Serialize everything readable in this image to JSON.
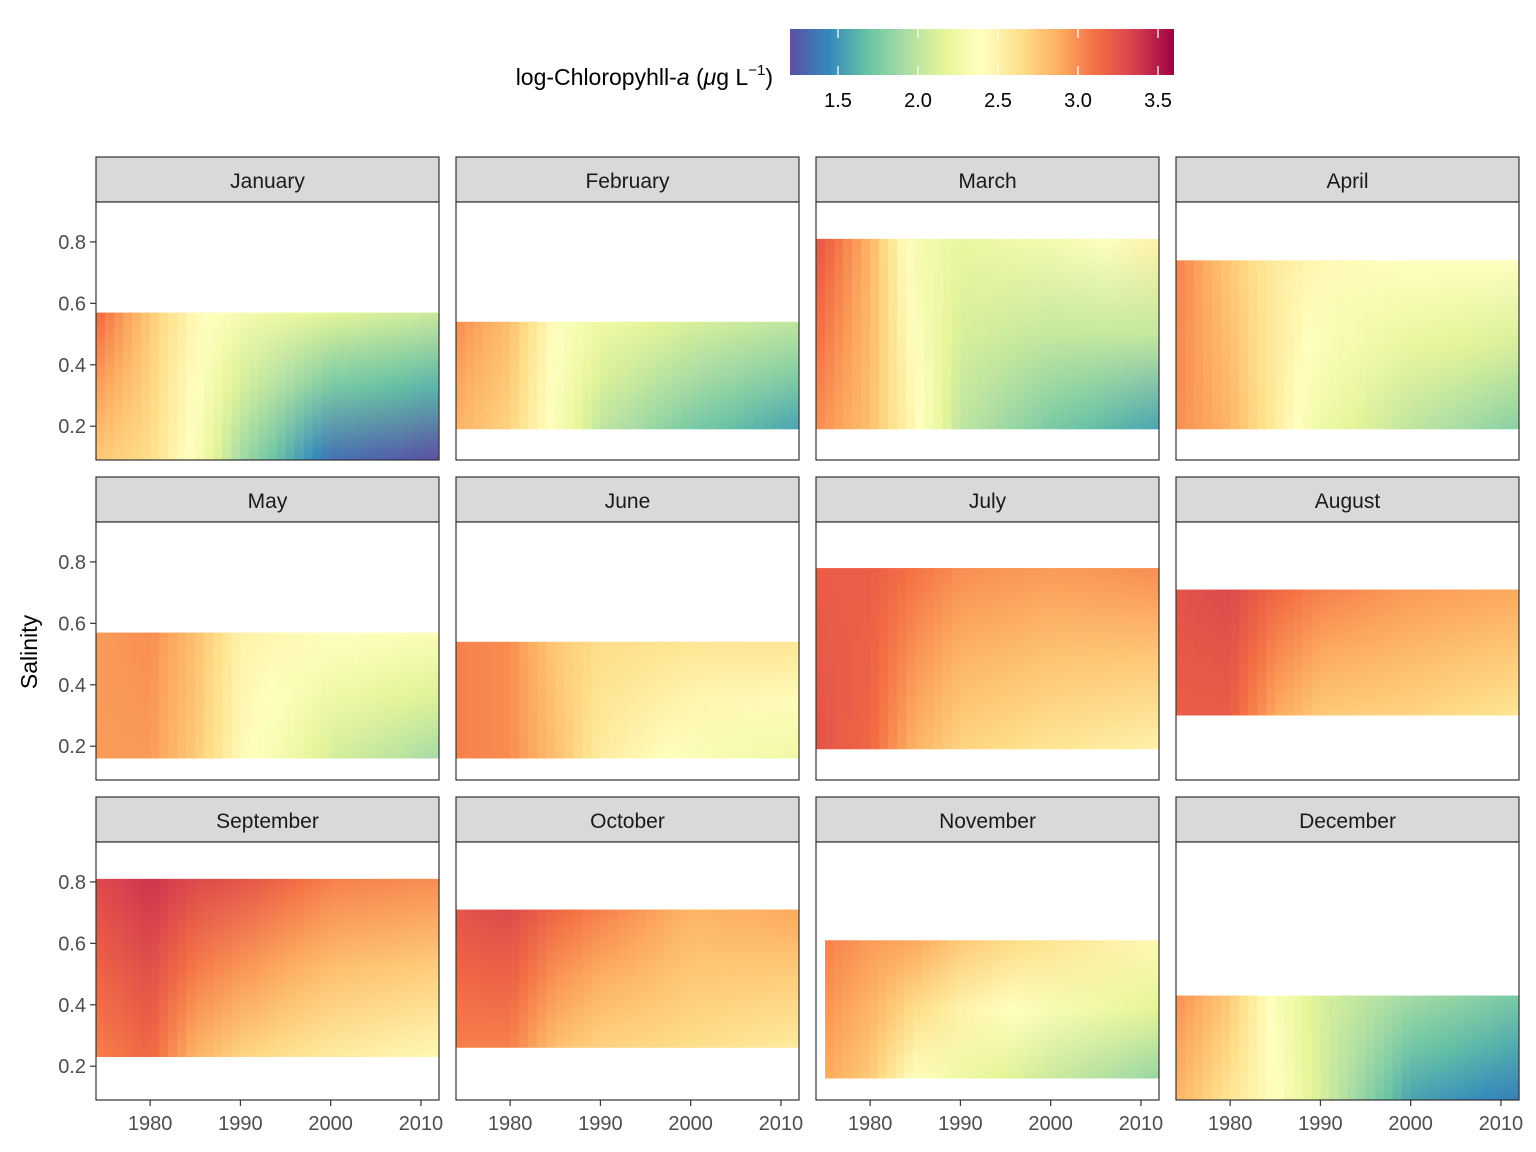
{
  "chart_data": {
    "type": "heatmap",
    "facet_by": "month",
    "xlabel": "",
    "ylabel": "Salinity",
    "xlim": [
      1974,
      2012
    ],
    "ylim": [
      0.09,
      0.93
    ],
    "x_ticks": [
      1980,
      1990,
      2000,
      2010
    ],
    "y_ticks": [
      0.2,
      0.4,
      0.6,
      0.8
    ],
    "y_tick_labels": [
      "0.2",
      "0.4",
      "0.6",
      "0.8"
    ],
    "legend": {
      "title_main": "log-Chloropyhll-",
      "title_italic": "a",
      "title_unit_prefix": " (",
      "title_unit_mu": "μ",
      "title_unit_g": "g L",
      "title_exponent": "−1",
      "title_close": ")",
      "placement": "top",
      "range": [
        1.2,
        3.6
      ],
      "ticks": [
        1.5,
        2.0,
        2.5,
        3.0,
        3.5
      ],
      "tick_labels": [
        "1.5",
        "2.0",
        "2.5",
        "3.0",
        "3.5"
      ],
      "palette": [
        "#5e4fa2",
        "#3288bd",
        "#66c2a5",
        "#abdda4",
        "#e6f598",
        "#ffffbf",
        "#fee08b",
        "#fdae61",
        "#f46d43",
        "#d53e4f",
        "#9e0142"
      ]
    },
    "panels": [
      {
        "month": "January",
        "x_range": [
          1974,
          2012
        ],
        "salinity_range": [
          0.09,
          0.57
        ],
        "years": [
          1974,
          1980,
          1985,
          1990,
          2000,
          2012
        ],
        "top": [
          3.15,
          2.75,
          2.45,
          2.3,
          2.15,
          2.05
        ],
        "bottom": [
          2.75,
          2.65,
          2.35,
          1.9,
          1.35,
          1.2
        ]
      },
      {
        "month": "February",
        "x_range": [
          1974,
          2012
        ],
        "salinity_range": [
          0.19,
          0.54
        ],
        "years": [
          1974,
          1980,
          1985,
          1990,
          2000,
          2012
        ],
        "top": [
          3.0,
          2.8,
          2.4,
          2.25,
          2.1,
          2.0
        ],
        "bottom": [
          2.85,
          2.7,
          2.35,
          2.0,
          1.75,
          1.55
        ]
      },
      {
        "month": "March",
        "x_range": [
          1974,
          2012
        ],
        "salinity_range": [
          0.19,
          0.81
        ],
        "years": [
          1974,
          1980,
          1985,
          1990,
          2000,
          2012
        ],
        "top": [
          3.25,
          2.85,
          2.3,
          2.2,
          2.3,
          2.5
        ],
        "bottom": [
          3.0,
          2.8,
          2.45,
          2.0,
          1.75,
          1.55
        ]
      },
      {
        "month": "April",
        "x_range": [
          1974,
          2012
        ],
        "salinity_range": [
          0.19,
          0.74
        ],
        "years": [
          1974,
          1980,
          1985,
          1990,
          2000,
          2012
        ],
        "top": [
          3.05,
          2.75,
          2.55,
          2.45,
          2.4,
          2.4
        ],
        "bottom": [
          3.0,
          2.85,
          2.55,
          2.25,
          2.0,
          1.8
        ]
      },
      {
        "month": "May",
        "x_range": [
          1974,
          2012
        ],
        "salinity_range": [
          0.16,
          0.57
        ],
        "years": [
          1974,
          1980,
          1985,
          1990,
          2000,
          2012
        ],
        "top": [
          2.95,
          3.0,
          2.8,
          2.5,
          2.4,
          2.35
        ],
        "bottom": [
          2.95,
          2.95,
          2.75,
          2.45,
          2.1,
          1.9
        ]
      },
      {
        "month": "June",
        "x_range": [
          1974,
          2012
        ],
        "salinity_range": [
          0.16,
          0.54
        ],
        "years": [
          1974,
          1980,
          1985,
          1990,
          2000,
          2012
        ],
        "top": [
          3.05,
          3.0,
          2.75,
          2.65,
          2.6,
          2.6
        ],
        "bottom": [
          3.05,
          3.0,
          2.8,
          2.55,
          2.35,
          2.25
        ]
      },
      {
        "month": "July",
        "x_range": [
          1974,
          2012
        ],
        "salinity_range": [
          0.19,
          0.78
        ],
        "years": [
          1974,
          1980,
          1985,
          1990,
          2000,
          2012
        ],
        "top": [
          3.2,
          3.2,
          3.1,
          3.0,
          2.95,
          3.0
        ],
        "bottom": [
          3.25,
          3.15,
          2.85,
          2.7,
          2.6,
          2.5
        ]
      },
      {
        "month": "August",
        "x_range": [
          1974,
          2012
        ],
        "salinity_range": [
          0.3,
          0.71
        ],
        "years": [
          1974,
          1980,
          1985,
          1990,
          2000,
          2012
        ],
        "top": [
          3.25,
          3.3,
          3.15,
          3.05,
          2.95,
          2.9
        ],
        "bottom": [
          3.2,
          3.2,
          2.9,
          2.75,
          2.7,
          2.6
        ]
      },
      {
        "month": "September",
        "x_range": [
          1974,
          2012
        ],
        "salinity_range": [
          0.23,
          0.81
        ],
        "years": [
          1974,
          1980,
          1985,
          1990,
          2000,
          2012
        ],
        "top": [
          3.3,
          3.4,
          3.3,
          3.25,
          3.05,
          3.0
        ],
        "bottom": [
          3.05,
          3.15,
          2.85,
          2.7,
          2.55,
          2.45
        ]
      },
      {
        "month": "October",
        "x_range": [
          1974,
          2012
        ],
        "salinity_range": [
          0.26,
          0.71
        ],
        "years": [
          1974,
          1980,
          1985,
          1990,
          2000,
          2012
        ],
        "top": [
          3.25,
          3.3,
          3.15,
          3.05,
          2.85,
          2.9
        ],
        "bottom": [
          3.05,
          3.05,
          2.8,
          2.7,
          2.65,
          2.55
        ]
      },
      {
        "month": "November",
        "x_range": [
          1975,
          2012
        ],
        "salinity_range": [
          0.16,
          0.61
        ],
        "years": [
          1975,
          1980,
          1985,
          1990,
          2000,
          2012
        ],
        "top": [
          3.05,
          2.95,
          2.9,
          2.75,
          2.6,
          2.45
        ],
        "bottom": [
          2.9,
          2.75,
          2.4,
          2.25,
          2.05,
          1.85
        ]
      },
      {
        "month": "December",
        "x_range": [
          1974,
          2012
        ],
        "salinity_range": [
          0.09,
          0.43
        ],
        "years": [
          1974,
          1980,
          1985,
          1990,
          2000,
          2012
        ],
        "top": [
          3.0,
          2.75,
          2.35,
          2.1,
          1.9,
          1.75
        ],
        "bottom": [
          2.85,
          2.6,
          2.4,
          2.1,
          1.55,
          1.4
        ]
      }
    ]
  }
}
